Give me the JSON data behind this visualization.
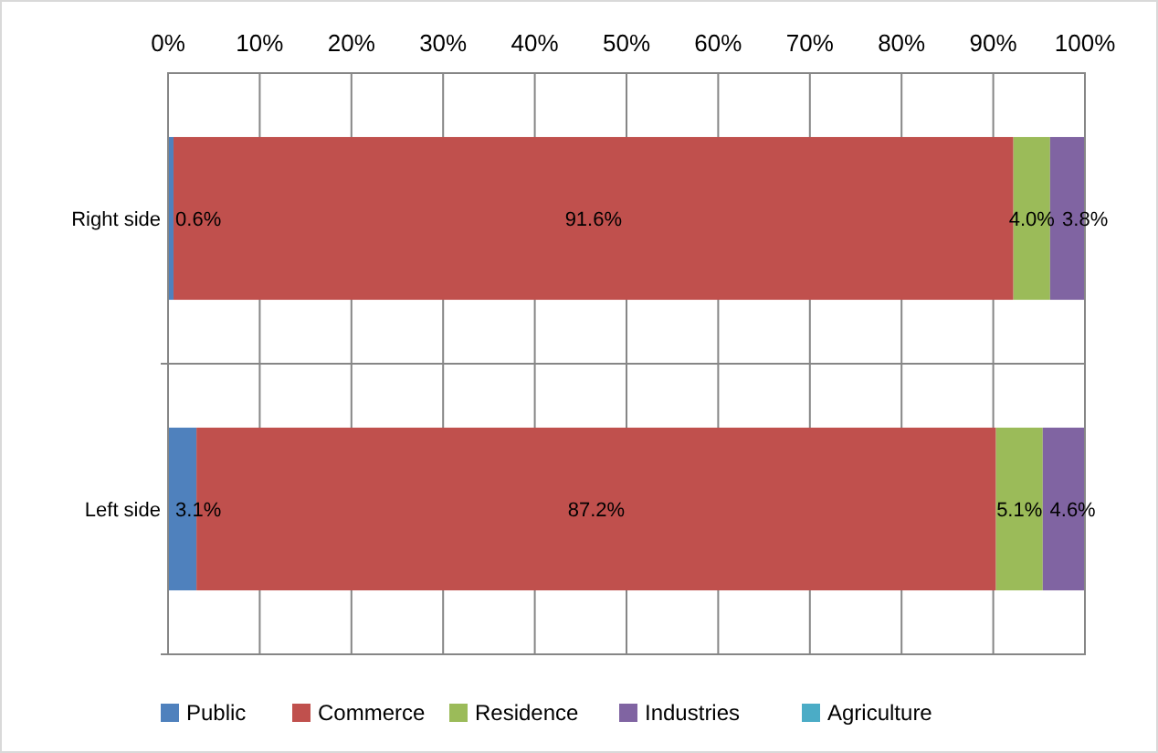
{
  "chart_data": {
    "type": "bar",
    "orientation": "horizontal",
    "stacked": true,
    "categories": [
      "Right side",
      "Left side"
    ],
    "xlim": [
      0,
      100
    ],
    "xticks": [
      {
        "value": 0,
        "label": "0%"
      },
      {
        "value": 10,
        "label": "10%"
      },
      {
        "value": 20,
        "label": "20%"
      },
      {
        "value": 30,
        "label": "30%"
      },
      {
        "value": 40,
        "label": "40%"
      },
      {
        "value": 50,
        "label": "50%"
      },
      {
        "value": 60,
        "label": "60%"
      },
      {
        "value": 70,
        "label": "70%"
      },
      {
        "value": 80,
        "label": "80%"
      },
      {
        "value": 90,
        "label": "90%"
      },
      {
        "value": 100,
        "label": "100%"
      }
    ],
    "grid": "x",
    "legend": "bottom",
    "series": [
      {
        "name": "Public",
        "color": "#4f81bd",
        "values": [
          0.6,
          3.1
        ],
        "value_labels": [
          "0.6%",
          "3.1%"
        ]
      },
      {
        "name": "Commerce",
        "color": "#c0504d",
        "values": [
          91.6,
          87.2
        ],
        "value_labels": [
          "91.6%",
          "87.2%"
        ]
      },
      {
        "name": "Residence",
        "color": "#9bbb59",
        "values": [
          4.0,
          5.1
        ],
        "value_labels": [
          "4.0%",
          "5.1%"
        ]
      },
      {
        "name": "Industries",
        "color": "#8064a2",
        "values": [
          3.8,
          4.6
        ],
        "value_labels": [
          "3.8%",
          "4.6%"
        ]
      },
      {
        "name": "Agriculture",
        "color": "#4bacc6",
        "values": [
          0,
          0
        ],
        "value_labels": [
          null,
          null
        ]
      }
    ]
  }
}
